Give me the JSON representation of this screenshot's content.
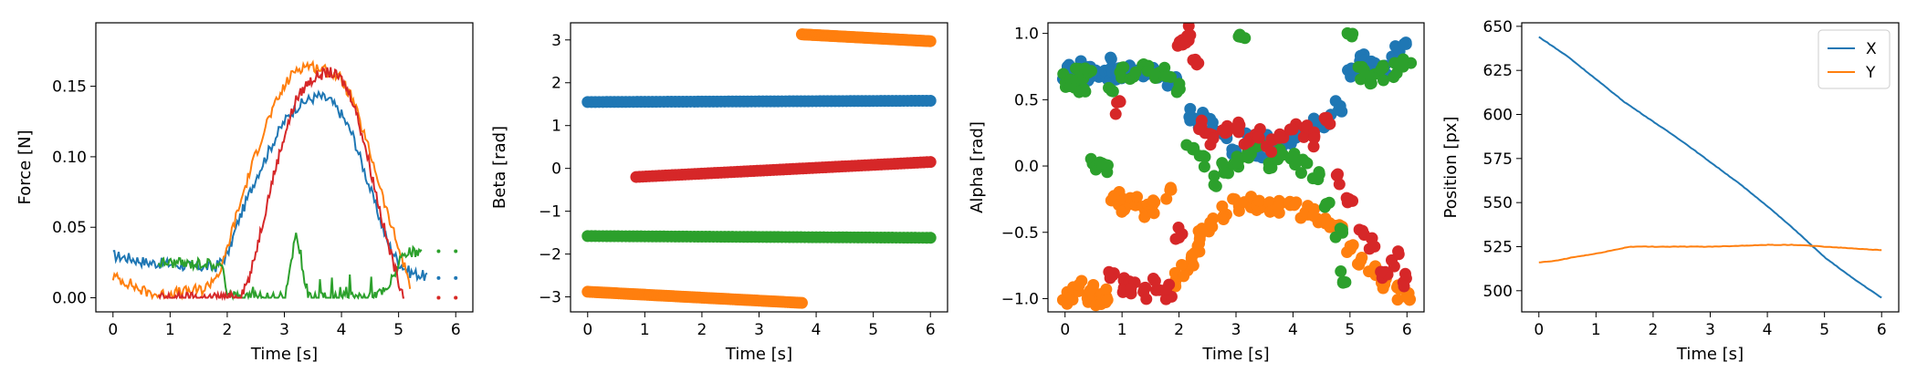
{
  "colors": {
    "blue": "#1f77b4",
    "orange": "#ff7f0e",
    "green": "#2ca02c",
    "red": "#d62728"
  },
  "chart_data": [
    {
      "type": "line",
      "xlabel": "Time [s]",
      "ylabel": "Force [N]",
      "xlim": [
        -0.3,
        6.3
      ],
      "ylim": [
        -0.01,
        0.195
      ],
      "xticks": [
        0,
        1,
        2,
        3,
        4,
        5,
        6
      ],
      "yticks": [
        0.0,
        0.05,
        0.1,
        0.15
      ],
      "ytick_labels": [
        "0.00",
        "0.05",
        "0.10",
        "0.15"
      ],
      "series": [
        {
          "color": "blue",
          "x": [
            0,
            0.3,
            0.6,
            1.0,
            1.4,
            1.8,
            2.0,
            2.2,
            2.5,
            2.8,
            3.0,
            3.2,
            3.4,
            3.6,
            3.8,
            4.0,
            4.2,
            4.4,
            4.6,
            4.8,
            5.0,
            5.2,
            5.5
          ],
          "y": [
            0.03,
            0.028,
            0.025,
            0.024,
            0.022,
            0.022,
            0.03,
            0.055,
            0.085,
            0.11,
            0.125,
            0.135,
            0.14,
            0.143,
            0.14,
            0.13,
            0.115,
            0.09,
            0.065,
            0.04,
            0.025,
            0.018,
            0.015
          ]
        },
        {
          "color": "orange",
          "x": [
            0,
            0.3,
            0.5,
            0.8,
            1.2,
            1.6,
            1.9,
            2.1,
            2.4,
            2.7,
            3.0,
            3.2,
            3.4,
            3.6,
            3.8,
            4.0,
            4.2,
            4.4,
            4.6,
            4.8,
            5.0,
            5.2
          ],
          "y": [
            0.015,
            0.01,
            0.005,
            0.002,
            0.004,
            0.006,
            0.02,
            0.05,
            0.09,
            0.125,
            0.15,
            0.162,
            0.165,
            0.163,
            0.16,
            0.155,
            0.14,
            0.115,
            0.09,
            0.06,
            0.035,
            0.01
          ]
        },
        {
          "color": "green",
          "x": [
            0.8,
            1.0,
            1.3,
            1.6,
            1.9,
            2.0,
            2.2,
            2.6,
            3.0,
            3.2,
            3.4,
            3.8,
            4.0,
            4.4,
            4.8,
            5.0,
            5.2,
            5.4
          ],
          "y": [
            0.025,
            0.025,
            0.024,
            0.025,
            0.022,
            0.005,
            0.0,
            0.0,
            0.0,
            0.045,
            0.0,
            0.0,
            0.0,
            0.0,
            0.005,
            0.025,
            0.032,
            0.032
          ]
        },
        {
          "color": "red",
          "x": [
            0.8,
            1.5,
            2.2,
            2.4,
            2.6,
            2.8,
            3.0,
            3.2,
            3.4,
            3.6,
            3.8,
            4.0,
            4.2,
            4.4,
            4.6,
            4.8,
            5.0,
            5.1
          ],
          "y": [
            0.0,
            0.0,
            0.0,
            0.015,
            0.05,
            0.085,
            0.115,
            0.14,
            0.152,
            0.158,
            0.16,
            0.155,
            0.14,
            0.11,
            0.075,
            0.04,
            0.012,
            0.0
          ]
        }
      ]
    },
    {
      "type": "scatter",
      "xlabel": "Time [s]",
      "ylabel": "Beta [rad]",
      "xlim": [
        -0.3,
        6.3
      ],
      "ylim": [
        -3.35,
        3.4
      ],
      "xticks": [
        0,
        1,
        2,
        3,
        4,
        5,
        6
      ],
      "yticks": [
        -3,
        -2,
        -1,
        0,
        1,
        2,
        3
      ],
      "ytick_labels": [
        "−3",
        "−2",
        "−1",
        "0",
        "1",
        "2",
        "3"
      ],
      "series": [
        {
          "color": "blue",
          "x_range": [
            0,
            6
          ],
          "y_start": 1.55,
          "y_end": 1.58
        },
        {
          "color": "orange",
          "x_range": [
            0,
            3.75
          ],
          "y_start": -2.88,
          "y_end": -3.14
        },
        {
          "color": "orange",
          "x_range": [
            3.75,
            6
          ],
          "y_start": 3.13,
          "y_end": 2.97
        },
        {
          "color": "green",
          "x_range": [
            0,
            6
          ],
          "y_start": -1.58,
          "y_end": -1.62
        },
        {
          "color": "red",
          "x_range": [
            0.85,
            6
          ],
          "y_start": -0.2,
          "y_end": 0.15
        }
      ]
    },
    {
      "type": "scatter",
      "xlabel": "Time [s]",
      "ylabel": "Alpha [rad]",
      "xlim": [
        -0.3,
        6.3
      ],
      "ylim": [
        -1.1,
        1.08
      ],
      "xticks": [
        0,
        1,
        2,
        3,
        4,
        5,
        6
      ],
      "yticks": [
        -1.0,
        -0.5,
        0.0,
        0.5,
        1.0
      ],
      "ytick_labels": [
        "−1.0",
        "−0.5",
        "0.0",
        "0.5",
        "1.0"
      ],
      "series": [
        {
          "color": "blue",
          "x_points": [
            0.0,
            0.1,
            0.2,
            0.3,
            0.4,
            0.5,
            0.6,
            0.7,
            0.8,
            0.9,
            1.0,
            1.2,
            1.4,
            1.6,
            1.8,
            2.0,
            2.2,
            2.4,
            2.6,
            2.8,
            3.0,
            3.2,
            3.4,
            3.6,
            3.8,
            4.0,
            4.2,
            4.4,
            4.6,
            4.8,
            5.0,
            5.2,
            5.4,
            5.6,
            5.8,
            6.0
          ],
          "y_points": [
            0.7,
            0.72,
            0.68,
            0.75,
            0.7,
            0.73,
            0.66,
            0.7,
            0.78,
            0.65,
            0.7,
            0.72,
            0.68,
            0.7,
            0.66,
            0.62,
            0.4,
            0.35,
            0.3,
            0.2,
            0.15,
            0.2,
            0.1,
            0.18,
            0.12,
            0.2,
            0.25,
            0.3,
            0.35,
            0.45,
            0.7,
            0.8,
            0.75,
            0.72,
            0.85,
            0.9
          ]
        },
        {
          "color": "orange",
          "x_points": [
            0.0,
            0.1,
            0.2,
            0.3,
            0.4,
            0.5,
            0.6,
            0.7,
            0.8,
            0.9,
            1.0,
            1.2,
            1.4,
            1.6,
            1.8,
            2.0,
            2.1,
            2.2,
            2.3,
            2.4,
            2.5,
            2.6,
            2.8,
            3.0,
            3.2,
            3.4,
            3.6,
            3.8,
            4.0,
            4.2,
            4.4,
            4.6,
            4.8,
            5.0,
            5.2,
            5.4,
            5.6,
            5.8,
            6.0
          ],
          "y_points": [
            -0.98,
            -1.0,
            -0.95,
            -0.9,
            -1.0,
            -0.92,
            -1.0,
            -0.97,
            -0.25,
            -0.2,
            -0.3,
            -0.25,
            -0.35,
            -0.3,
            -0.2,
            -0.85,
            -0.8,
            -0.7,
            -0.6,
            -0.5,
            -0.45,
            -0.4,
            -0.35,
            -0.3,
            -0.28,
            -0.32,
            -0.3,
            -0.3,
            -0.32,
            -0.35,
            -0.38,
            -0.45,
            -0.5,
            -0.6,
            -0.7,
            -0.8,
            -0.9,
            -0.95,
            -0.98
          ]
        },
        {
          "color": "green",
          "x_points": [
            0.0,
            0.1,
            0.2,
            0.3,
            0.4,
            0.5,
            0.6,
            0.7,
            0.8,
            1.0,
            1.2,
            1.4,
            1.6,
            1.8,
            2.0,
            2.2,
            2.4,
            2.6,
            2.8,
            3.0,
            3.1,
            3.2,
            3.4,
            3.6,
            3.8,
            4.0,
            4.2,
            4.4,
            4.6,
            4.8,
            4.9,
            5.0,
            5.2,
            5.4,
            5.6,
            5.8,
            6.0
          ],
          "y_points": [
            0.65,
            0.62,
            0.68,
            0.6,
            0.7,
            0.0,
            0.0,
            0.0,
            0.62,
            0.7,
            0.68,
            0.72,
            0.66,
            0.7,
            0.6,
            0.1,
            0.05,
            -0.1,
            0.0,
            0.05,
            1.0,
            0.1,
            0.15,
            0.0,
            0.1,
            0.05,
            0.0,
            -0.1,
            -0.3,
            -0.5,
            -0.85,
            1.0,
            0.7,
            0.65,
            0.7,
            0.72,
            0.75
          ]
        },
        {
          "color": "red",
          "x_points": [
            0.8,
            0.9,
            1.0,
            1.2,
            1.4,
            1.6,
            1.8,
            2.0,
            2.0,
            2.1,
            2.2,
            2.3,
            2.4,
            2.6,
            2.8,
            3.0,
            3.2,
            3.4,
            3.6,
            3.8,
            4.0,
            4.2,
            4.4,
            4.6,
            4.8,
            5.0,
            5.2,
            5.4,
            5.6,
            5.8,
            6.0
          ],
          "y_points": [
            -0.85,
            0.45,
            -0.9,
            -0.92,
            -0.95,
            -0.9,
            -0.95,
            -0.5,
            0.9,
            0.95,
            1.0,
            0.8,
            0.3,
            0.2,
            0.25,
            0.3,
            0.2,
            0.25,
            0.15,
            0.2,
            0.3,
            0.25,
            0.2,
            0.35,
            -0.1,
            -0.3,
            -0.5,
            -0.6,
            -0.8,
            -0.7,
            -0.85
          ]
        }
      ]
    },
    {
      "type": "line",
      "xlabel": "Time [s]",
      "ylabel": "Position [px]",
      "xlim": [
        -0.3,
        6.3
      ],
      "ylim": [
        488,
        652
      ],
      "xticks": [
        0,
        1,
        2,
        3,
        4,
        5,
        6
      ],
      "yticks": [
        500,
        525,
        550,
        575,
        600,
        625,
        650
      ],
      "legend": {
        "placement": "top-right",
        "entries": [
          "X",
          "Y"
        ]
      },
      "series": [
        {
          "name": "X",
          "color": "blue",
          "x": [
            0,
            0.5,
            1,
            1.5,
            2,
            2.5,
            3,
            3.5,
            4,
            4.5,
            5,
            5.5,
            6
          ],
          "y": [
            644,
            633,
            620,
            607,
            596,
            585,
            573,
            561,
            548,
            534,
            519,
            507,
            496
          ]
        },
        {
          "name": "Y",
          "color": "orange",
          "x": [
            0,
            0.3,
            0.6,
            1.0,
            1.3,
            1.6,
            2.0,
            3.0,
            4.0,
            4.5,
            5.0,
            5.5,
            6.0
          ],
          "y": [
            516,
            517,
            519,
            521,
            523,
            525,
            525,
            525,
            526,
            526,
            525,
            524,
            523
          ]
        }
      ]
    }
  ]
}
